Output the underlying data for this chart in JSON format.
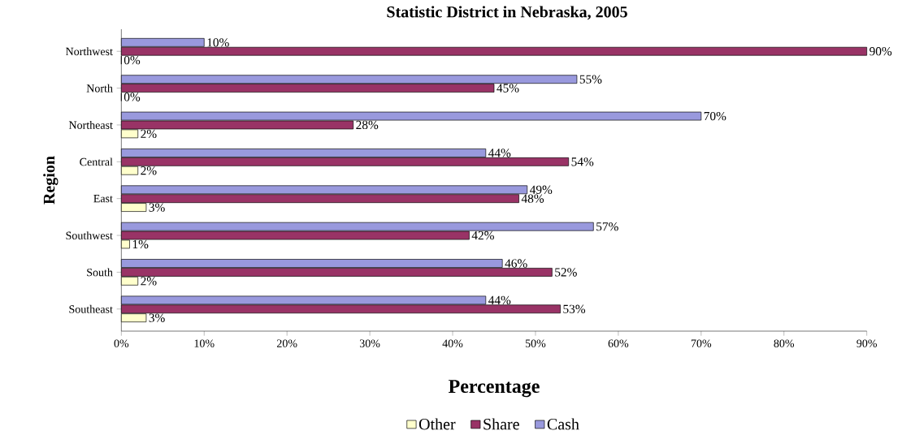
{
  "chart_data": {
    "type": "bar",
    "orientation": "horizontal",
    "title": "Statistic District in Nebraska, 2005",
    "xlabel": "Percentage",
    "ylabel": "Region",
    "categories": [
      "Northwest",
      "North",
      "Northeast",
      "Central",
      "East",
      "Southwest",
      "South",
      "Southeast"
    ],
    "series": [
      {
        "name": "Other",
        "color": "#ffffcc",
        "values": [
          0,
          0,
          2,
          2,
          3,
          1,
          2,
          3
        ],
        "value_labels": [
          "0%",
          "0%",
          "2%",
          "2%",
          "3%",
          "1%",
          "2%",
          "3%"
        ]
      },
      {
        "name": "Share",
        "color": "#993366",
        "values": [
          90,
          45,
          28,
          54,
          48,
          42,
          52,
          53
        ],
        "value_labels": [
          "90%",
          "45%",
          "28%",
          "54%",
          "48%",
          "42%",
          "52%",
          "53%"
        ]
      },
      {
        "name": "Cash",
        "color": "#9999dd",
        "values": [
          10,
          55,
          70,
          44,
          49,
          57,
          46,
          44
        ],
        "value_labels": [
          "10%",
          "55%",
          "70%",
          "44%",
          "49%",
          "57%",
          "46%",
          "44%"
        ]
      }
    ],
    "xlim": [
      0,
      90
    ],
    "xticks": [
      {
        "value": 0,
        "label": "0%"
      },
      {
        "value": 10,
        "label": "10%"
      },
      {
        "value": 20,
        "label": "20%"
      },
      {
        "value": 30,
        "label": "30%"
      },
      {
        "value": 40,
        "label": "40%"
      },
      {
        "value": 50,
        "label": "50%"
      },
      {
        "value": 60,
        "label": "60%"
      },
      {
        "value": 70,
        "label": "70%"
      },
      {
        "value": 80,
        "label": "80%"
      },
      {
        "value": 90,
        "label": "90%"
      }
    ],
    "legend": "bottom"
  }
}
